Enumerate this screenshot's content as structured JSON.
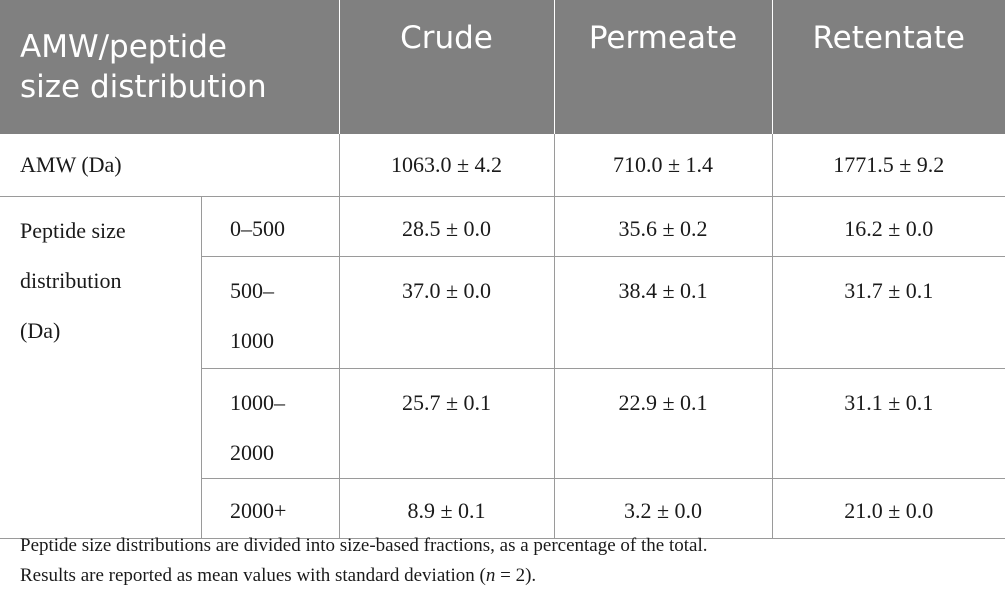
{
  "table": {
    "headers": [
      "AMW/peptide size distribution",
      "Crude",
      "Permeate",
      "Retentate"
    ],
    "amw_row": {
      "label": "AMW (Da)",
      "values": [
        "1063.0 ± 4.2",
        "710.0 ± 1.4",
        "1771.5 ± 9.2"
      ]
    },
    "distribution": {
      "label_lines": [
        "Peptide size",
        "distribution",
        "(Da)"
      ],
      "rows": [
        {
          "range_lines": [
            "0–500"
          ],
          "values": [
            "28.5 ± 0.0",
            "35.6 ± 0.2",
            "16.2 ± 0.0"
          ]
        },
        {
          "range_lines": [
            "500–",
            "1000"
          ],
          "values": [
            "37.0 ± 0.0",
            "38.4 ± 0.1",
            "31.7 ± 0.1"
          ]
        },
        {
          "range_lines": [
            "1000–",
            "2000"
          ],
          "values": [
            "25.7 ± 0.1",
            "22.9 ± 0.1",
            "31.1 ± 0.1"
          ]
        },
        {
          "range_lines": [
            "2000+"
          ],
          "values": [
            "8.9 ± 0.1",
            "3.2 ± 0.0",
            "21.0 ± 0.0"
          ]
        }
      ]
    }
  },
  "footnote": {
    "line1": "Peptide size distributions are divided into size-based fractions, as a percentage of the total.",
    "line2_before": "Results are reported as mean values with standard deviation (",
    "line2_italic": "n",
    "line2_after": " = 2)."
  }
}
